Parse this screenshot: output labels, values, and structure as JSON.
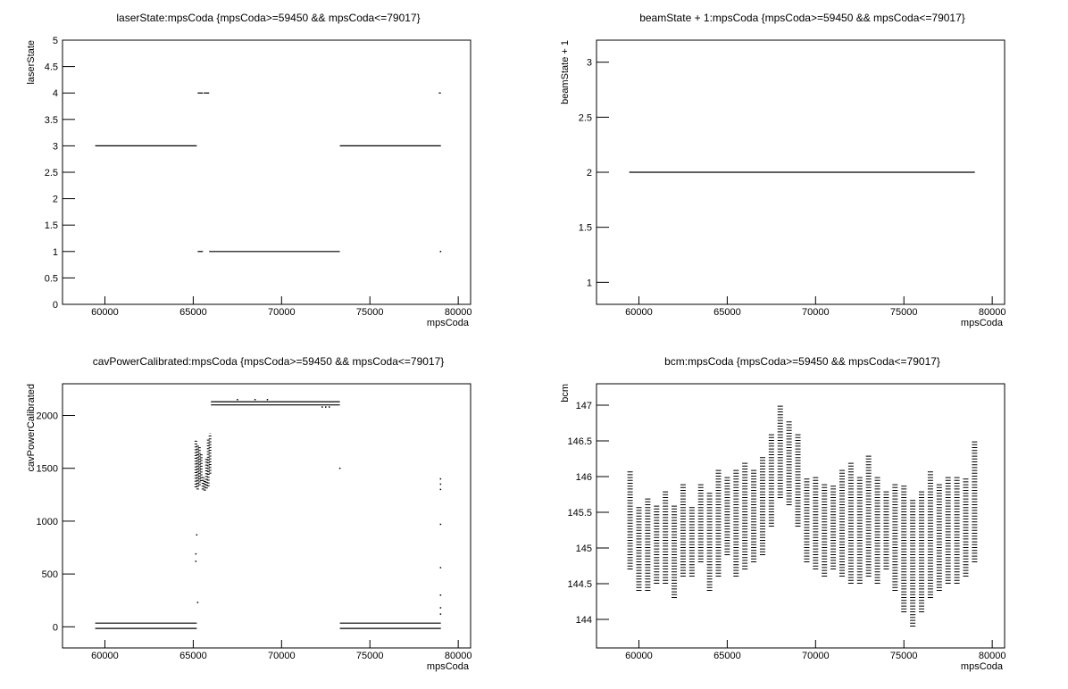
{
  "chart_data": [
    {
      "type": "scatter",
      "title": "laserState:mpsCoda {mpsCoda>=59450 && mpsCoda<=79017}",
      "x_label": "mpsCoda",
      "y_label": "laserState",
      "color": "#000000",
      "xlim": [
        57600,
        80700
      ],
      "xticks": [
        60000,
        65000,
        70000,
        75000,
        80000
      ],
      "ylim": [
        0,
        5
      ],
      "yticks": [
        0,
        0.5,
        1,
        1.5,
        2,
        2.5,
        3,
        3.5,
        4,
        4.5,
        5
      ],
      "series": [
        {
          "x": [
            59450,
            65200
          ],
          "values": [
            3,
            3
          ]
        },
        {
          "x": [
            65250,
            65550
          ],
          "values": [
            4,
            4
          ]
        },
        {
          "x": [
            65600,
            65900
          ],
          "values": [
            4,
            4
          ]
        },
        {
          "x": [
            65250,
            65550
          ],
          "values": [
            1,
            1
          ]
        },
        {
          "x": [
            65900,
            73300
          ],
          "values": [
            1,
            1
          ]
        },
        {
          "x": [
            73300,
            79017
          ],
          "values": [
            3,
            3
          ]
        },
        {
          "x": [
            78900,
            79017
          ],
          "values": [
            4,
            4
          ]
        }
      ],
      "points": {
        "x": [
          79000
        ],
        "values": [
          1
        ]
      }
    },
    {
      "type": "scatter",
      "title": "beamState + 1:mpsCoda {mpsCoda>=59450 && mpsCoda<=79017}",
      "x_label": "mpsCoda",
      "y_label": "beamState + 1",
      "color": "#000000",
      "xlim": [
        57600,
        80700
      ],
      "xticks": [
        60000,
        65000,
        70000,
        75000,
        80000
      ],
      "ylim": [
        0.8,
        3.2
      ],
      "yticks": [
        1,
        1.5,
        2,
        2.5,
        3
      ],
      "series": [
        {
          "x": [
            59450,
            79017
          ],
          "values": [
            2,
            2
          ]
        }
      ]
    },
    {
      "type": "scatter",
      "title": "cavPowerCalibrated:mpsCoda {mpsCoda>=59450 && mpsCoda<=79017}",
      "x_label": "mpsCoda",
      "y_label": "cavPowerCalibrated",
      "color": "#000000",
      "xlim": [
        57600,
        80700
      ],
      "xticks": [
        60000,
        65000,
        70000,
        75000,
        80000
      ],
      "ylim": [
        -200,
        2300
      ],
      "yticks": [
        0,
        500,
        1000,
        1500,
        2000
      ],
      "series": [
        {
          "x": [
            59450,
            65200
          ],
          "values": [
            35,
            35
          ]
        },
        {
          "x": [
            59450,
            65200
          ],
          "values": [
            -15,
            -15
          ]
        },
        {
          "x": [
            66000,
            73300
          ],
          "values": [
            2130,
            2130
          ]
        },
        {
          "x": [
            66000,
            73300
          ],
          "values": [
            2100,
            2100
          ]
        },
        {
          "x": [
            73300,
            79017
          ],
          "values": [
            35,
            35
          ]
        },
        {
          "x": [
            73300,
            79017
          ],
          "values": [
            -15,
            -15
          ]
        }
      ],
      "ranges": {
        "x": [
          65150,
          65250,
          65350,
          65450,
          65550,
          65650,
          65750,
          65850,
          65950
        ],
        "low": [
          1320,
          1300,
          1340,
          1380,
          1300,
          1290,
          1310,
          1330,
          1450
        ],
        "high": [
          1760,
          1730,
          1700,
          1650,
          1420,
          1400,
          1600,
          1780,
          1830
        ]
      },
      "points": {
        "x": [
          65200,
          65150,
          65150,
          65250,
          73300,
          79000,
          79000,
          79000,
          79000,
          79000,
          79000,
          79000,
          79000,
          72300,
          72500,
          72700,
          67500,
          68500,
          69200
        ],
        "values": [
          870,
          690,
          620,
          230,
          1500,
          1400,
          1350,
          1300,
          970,
          560,
          300,
          180,
          120,
          2080,
          2080,
          2080,
          2150,
          2150,
          2150
        ]
      }
    },
    {
      "type": "scatter",
      "title": "bcm:mpsCoda {mpsCoda>=59450 && mpsCoda<=79017}",
      "x_label": "mpsCoda",
      "y_label": "bcm",
      "color": "#000000",
      "xlim": [
        57600,
        80700
      ],
      "xticks": [
        60000,
        65000,
        70000,
        75000,
        80000
      ],
      "ylim": [
        143.6,
        147.3
      ],
      "yticks": [
        144,
        144.5,
        145,
        145.5,
        146,
        146.5,
        147
      ],
      "ranges": {
        "x": [
          59500,
          60000,
          60500,
          61000,
          61500,
          62000,
          62500,
          63000,
          63500,
          64000,
          64500,
          65000,
          65500,
          66000,
          66500,
          67000,
          67500,
          68000,
          68500,
          69000,
          69500,
          70000,
          70500,
          71000,
          71500,
          72000,
          72500,
          73000,
          73500,
          74000,
          74500,
          75000,
          75500,
          76000,
          76500,
          77000,
          77500,
          78000,
          78500,
          79000
        ],
        "low": [
          144.7,
          144.4,
          144.4,
          144.5,
          144.5,
          144.3,
          144.6,
          144.6,
          144.8,
          144.4,
          144.6,
          144.9,
          144.6,
          144.7,
          144.8,
          144.9,
          145.3,
          145.7,
          145.6,
          145.3,
          144.8,
          144.7,
          144.6,
          144.7,
          144.6,
          144.5,
          144.5,
          144.6,
          144.5,
          144.7,
          144.4,
          144.1,
          143.9,
          144.1,
          144.3,
          144.4,
          144.5,
          144.5,
          144.6,
          144.8
        ],
        "high": [
          146.1,
          145.6,
          145.7,
          145.6,
          145.8,
          145.6,
          145.9,
          145.6,
          145.9,
          145.8,
          146.1,
          146.0,
          146.1,
          146.2,
          146.1,
          146.3,
          146.6,
          147.0,
          146.8,
          146.6,
          146.0,
          146.0,
          145.9,
          145.9,
          146.1,
          146.2,
          146.0,
          146.3,
          146.0,
          145.8,
          145.9,
          145.9,
          145.7,
          145.8,
          146.1,
          145.9,
          146.0,
          146.0,
          146.0,
          146.5
        ]
      }
    }
  ]
}
